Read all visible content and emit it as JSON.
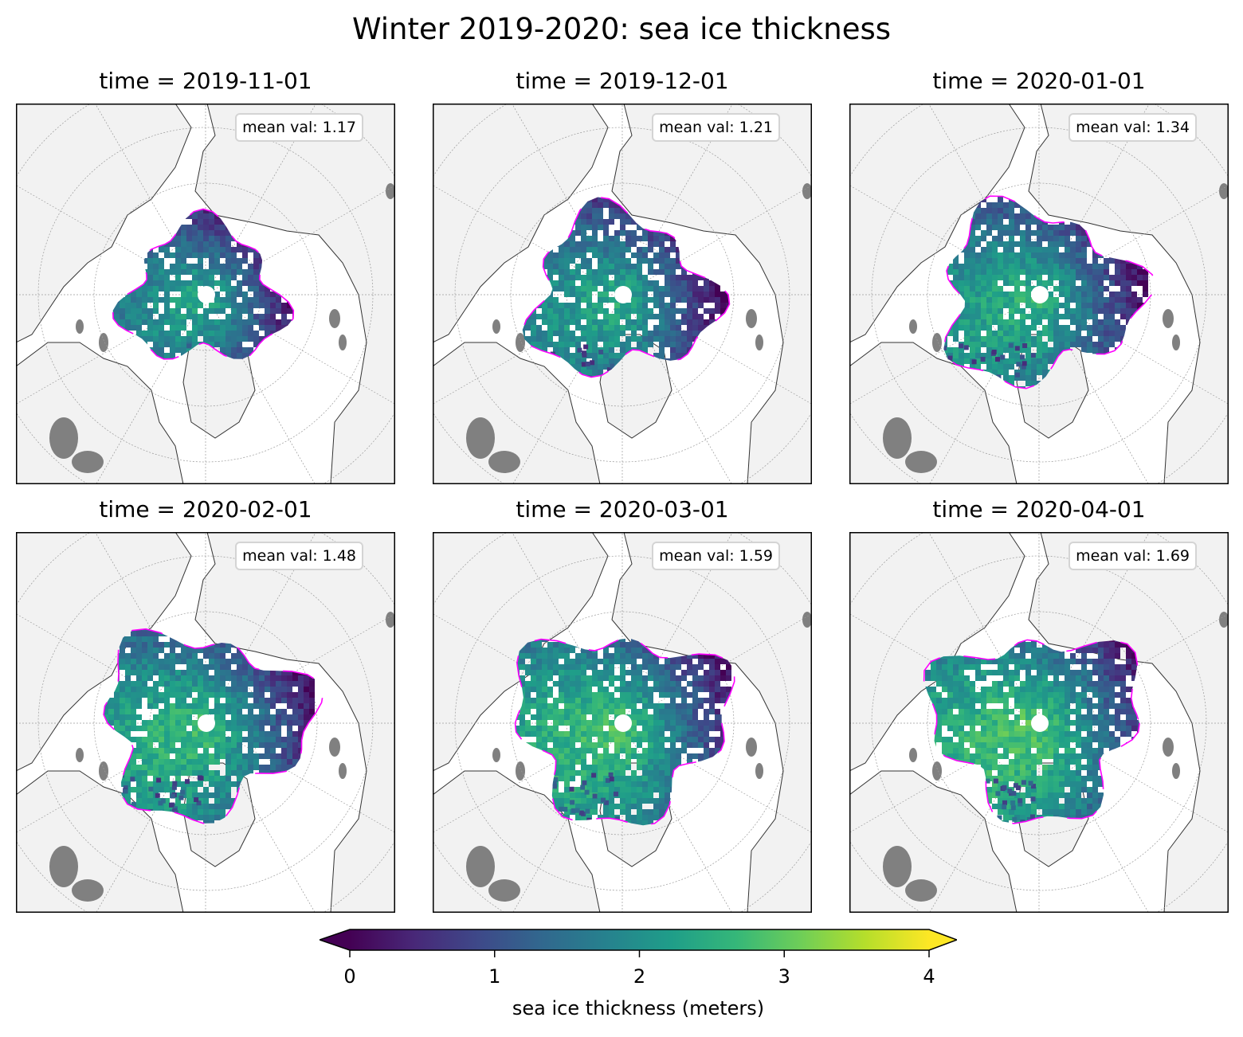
{
  "title": "Winter 2019-2020: sea ice thickness",
  "panels": [
    {
      "title": "time = 2019-11-01",
      "mean_label": "mean val: 1.17",
      "mean_value": 1.17,
      "ice_extent": 0.8
    },
    {
      "title": "time = 2019-12-01",
      "mean_label": "mean val: 1.21",
      "mean_value": 1.21,
      "ice_extent": 0.93
    },
    {
      "title": "time = 2020-01-01",
      "mean_label": "mean val: 1.34",
      "mean_value": 1.34,
      "ice_extent": 1.0
    },
    {
      "title": "time = 2020-02-01",
      "mean_label": "mean val: 1.48",
      "mean_value": 1.48,
      "ice_extent": 1.05
    },
    {
      "title": "time = 2020-03-01",
      "mean_label": "mean val: 1.59",
      "mean_value": 1.59,
      "ice_extent": 1.08
    },
    {
      "title": "time = 2020-04-01",
      "mean_label": "mean val: 1.69",
      "mean_value": 1.69,
      "ice_extent": 1.06
    }
  ],
  "colorbar": {
    "label": "sea ice thickness (meters)",
    "ticks": [
      "0",
      "1",
      "2",
      "3",
      "4"
    ],
    "range": [
      0,
      4
    ],
    "extend": "both",
    "colormap": "viridis",
    "colors": [
      "#440154",
      "#482878",
      "#3e4989",
      "#31688e",
      "#26828e",
      "#1f9e89",
      "#35b779",
      "#6ece58",
      "#b5de2b",
      "#fde725"
    ]
  },
  "map_style": {
    "ocean_color": "#ffffff",
    "land_color": "#f2f2f2",
    "coastline_color": "#333333",
    "ice_edge_color": "#ff00ff",
    "lake_color": "#808080",
    "gridline_color": "#9a9a9a"
  }
}
